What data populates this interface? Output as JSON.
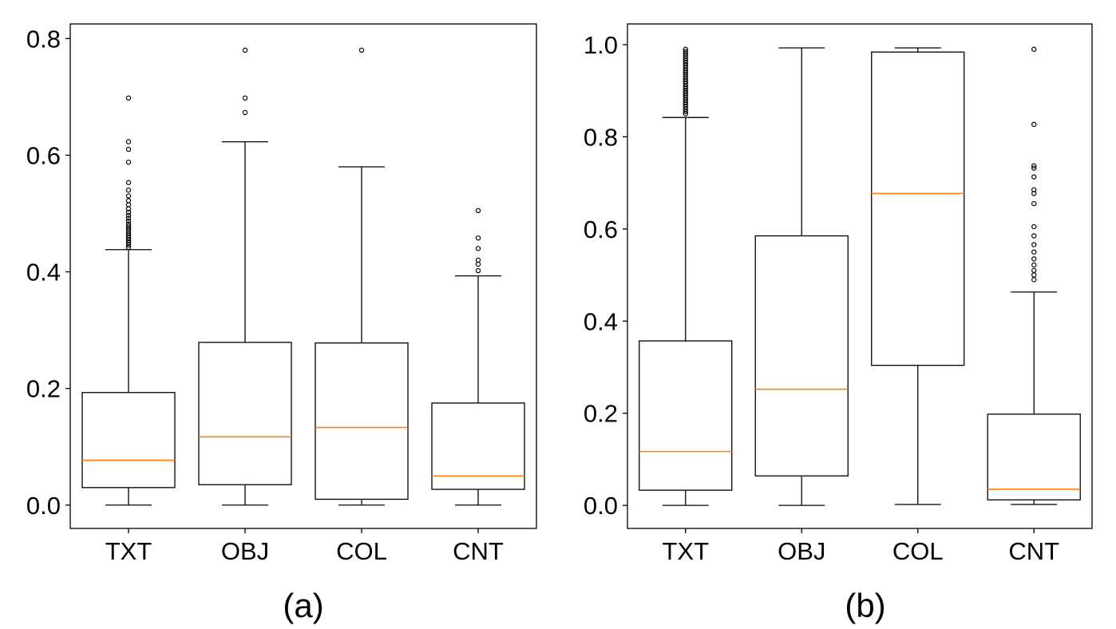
{
  "colors": {
    "median": "#ff7f0e",
    "line": "#000000",
    "background": "#ffffff"
  },
  "chart_data": [
    {
      "type": "boxplot",
      "caption": "(a)",
      "categories": [
        "TXT",
        "OBJ",
        "COL",
        "CNT"
      ],
      "ylim": [
        -0.04,
        0.825
      ],
      "yticks": [
        0.0,
        0.2,
        0.4,
        0.6,
        0.8
      ],
      "ytick_labels": [
        "0.0",
        "0.2",
        "0.4",
        "0.6",
        "0.8"
      ],
      "boxes": [
        {
          "label": "TXT",
          "whislo": 0.0,
          "q1": 0.03,
          "med": 0.077,
          "q3": 0.193,
          "whishi": 0.438,
          "fliers": [
            0.698,
            0.623,
            0.61,
            0.588,
            0.553,
            0.54,
            0.53,
            0.522,
            0.515,
            0.508,
            0.502,
            0.497,
            0.492,
            0.487,
            0.482,
            0.478,
            0.474,
            0.47,
            0.466,
            0.462,
            0.458,
            0.454,
            0.45,
            0.446,
            0.442
          ]
        },
        {
          "label": "OBJ",
          "whislo": 0.0,
          "q1": 0.035,
          "med": 0.117,
          "q3": 0.279,
          "whishi": 0.623,
          "fliers": [
            0.78,
            0.698,
            0.673
          ]
        },
        {
          "label": "COL",
          "whislo": 0.0,
          "q1": 0.01,
          "med": 0.133,
          "q3": 0.278,
          "whishi": 0.58,
          "fliers": [
            0.78
          ]
        },
        {
          "label": "CNT",
          "whislo": 0.0,
          "q1": 0.027,
          "med": 0.05,
          "q3": 0.175,
          "whishi": 0.393,
          "fliers": [
            0.505,
            0.458,
            0.44,
            0.42,
            0.413,
            0.402
          ]
        }
      ]
    },
    {
      "type": "boxplot",
      "caption": "(b)",
      "categories": [
        "TXT",
        "OBJ",
        "COL",
        "CNT"
      ],
      "ylim": [
        -0.05,
        1.045
      ],
      "yticks": [
        0.0,
        0.2,
        0.4,
        0.6,
        0.8,
        1.0
      ],
      "ytick_labels": [
        "0.0",
        "0.2",
        "0.4",
        "0.6",
        "0.8",
        "1.0"
      ],
      "boxes": [
        {
          "label": "TXT",
          "whislo": 0.0,
          "q1": 0.033,
          "med": 0.117,
          "q3": 0.357,
          "whishi": 0.842,
          "fliers": [
            0.99,
            0.985,
            0.98,
            0.975,
            0.97,
            0.965,
            0.96,
            0.955,
            0.95,
            0.945,
            0.94,
            0.935,
            0.93,
            0.925,
            0.92,
            0.915,
            0.91,
            0.905,
            0.9,
            0.895,
            0.89,
            0.885,
            0.88,
            0.875,
            0.87,
            0.865,
            0.86,
            0.855,
            0.85
          ]
        },
        {
          "label": "OBJ",
          "whislo": 0.0,
          "q1": 0.064,
          "med": 0.252,
          "q3": 0.585,
          "whishi": 0.993,
          "fliers": []
        },
        {
          "label": "COL",
          "whislo": 0.002,
          "q1": 0.304,
          "med": 0.677,
          "q3": 0.984,
          "whishi": 0.993,
          "fliers": []
        },
        {
          "label": "CNT",
          "whislo": 0.002,
          "q1": 0.012,
          "med": 0.035,
          "q3": 0.198,
          "whishi": 0.463,
          "fliers": [
            0.99,
            0.827,
            0.737,
            0.732,
            0.713,
            0.685,
            0.677,
            0.655,
            0.605,
            0.585,
            0.566,
            0.55,
            0.535,
            0.522,
            0.51,
            0.5,
            0.49
          ]
        }
      ]
    }
  ]
}
